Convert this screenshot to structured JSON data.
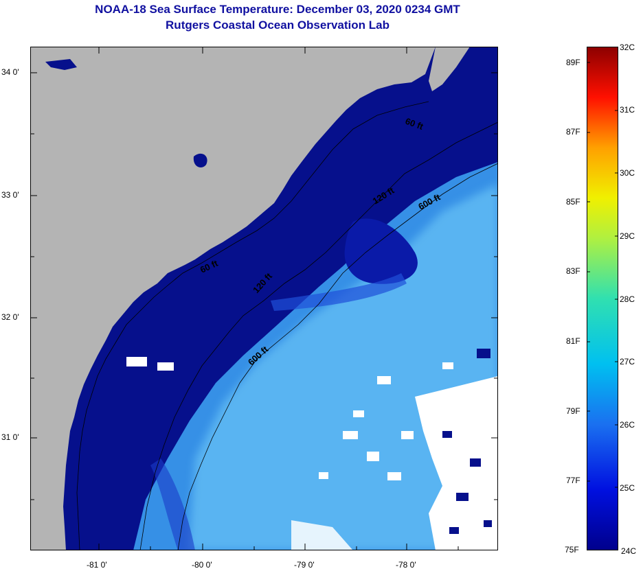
{
  "title": "NOAA-18 Sea Surface Temperature:  December 03, 2020 0234 GMT",
  "subtitle": "Rutgers Coastal Ocean Observation Lab",
  "map": {
    "lon_ticks": [
      "-81 0'",
      "-80 0'",
      "-79 0'",
      "-78 0'"
    ],
    "lat_ticks": [
      "34 0'",
      "33 0'",
      "32 0'",
      "31 0'"
    ],
    "contours": [
      "60 ft",
      "120 ft",
      "600 ft"
    ],
    "colors": {
      "land": "#b4b4b4",
      "shelf": "#06108c",
      "warm": "#3c9ff0",
      "cloud": "#ffffff"
    }
  },
  "colorbar": {
    "fahrenheit": [
      "89F",
      "87F",
      "85F",
      "83F",
      "81F",
      "79F",
      "77F",
      "75F"
    ],
    "celsius": [
      "32C",
      "31C",
      "30C",
      "29C",
      "28C",
      "27C",
      "26C",
      "25C",
      "24C"
    ]
  }
}
